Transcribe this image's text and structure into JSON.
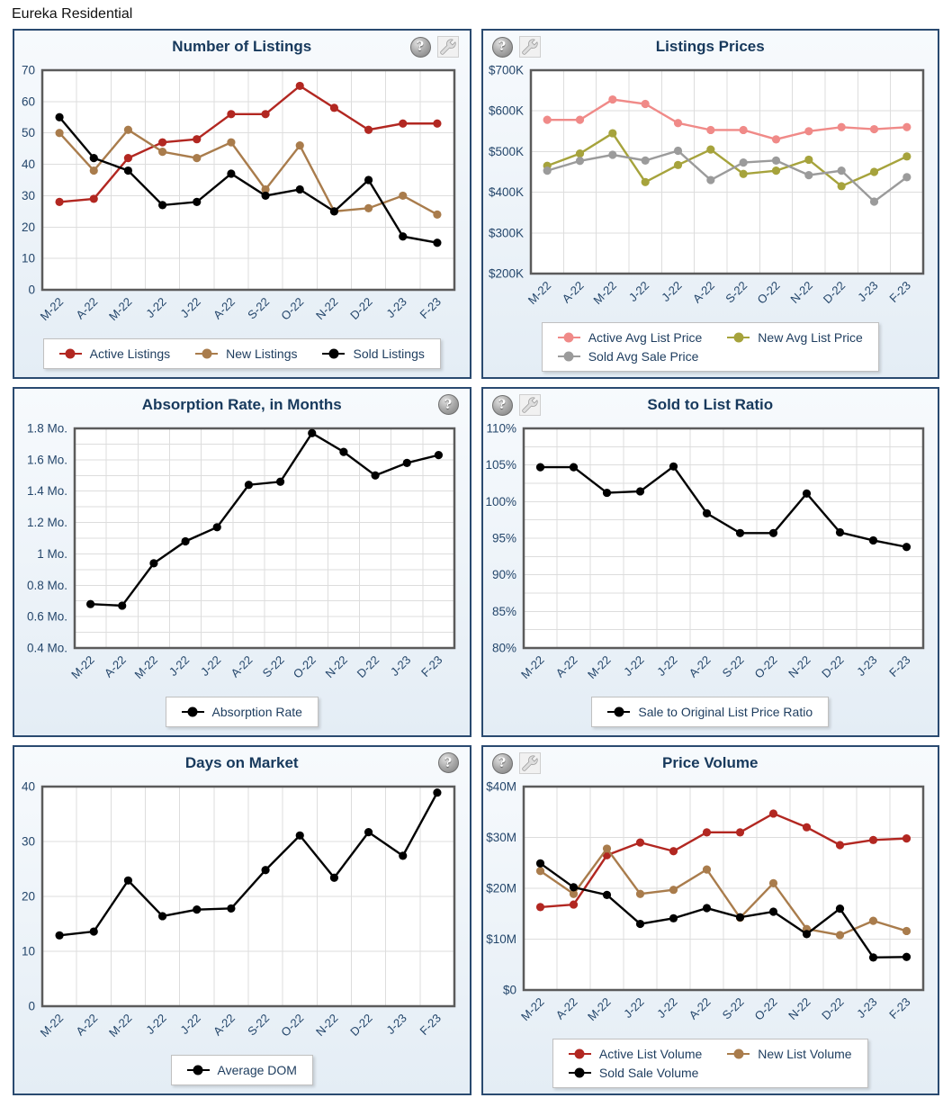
{
  "page_title": "Eureka Residential",
  "colors": {
    "panel_border": "#2a4a70",
    "title_text": "#17395c",
    "axis_text": "#24466b",
    "grid": "#dddddd",
    "plot_border": "#5b5b5b",
    "plot_bg": "#ffffff",
    "legend_border": "#c0c0c0",
    "legend_bg": "#ffffff",
    "legend_text": "#1d3c5e",
    "panel_bg_top": "#f7fafd",
    "panel_bg_bottom": "#e4edf5",
    "page_bg": "#ffffff",
    "series_red": "#b22721",
    "series_brown": "#a97c4c",
    "series_black": "#000000",
    "series_pink": "#f08a88",
    "series_olive": "#a6a33c",
    "series_gray": "#9b9b9b"
  },
  "icons": {
    "help_glyph": "?",
    "tools_label": "tools"
  },
  "panels": [
    {
      "icons": [
        "help",
        "tools"
      ],
      "icons_side": "right"
    },
    {
      "icons": [
        "help",
        "tools"
      ],
      "icons_side": "left"
    },
    {
      "icons": [
        "help"
      ],
      "icons_side": "right"
    },
    {
      "icons": [
        "help",
        "tools"
      ],
      "icons_side": "left"
    },
    {
      "icons": [
        "help"
      ],
      "icons_side": "right"
    },
    {
      "icons": [
        "help",
        "tools"
      ],
      "icons_side": "left"
    }
  ],
  "chart_data": [
    {
      "type": "line",
      "title": "Number of Listings",
      "categories": [
        "M-22",
        "A-22",
        "M-22",
        "J-22",
        "J-22",
        "A-22",
        "S-22",
        "O-22",
        "N-22",
        "D-22",
        "J-23",
        "F-23"
      ],
      "ylim": [
        0,
        70
      ],
      "y_grid_step": 10,
      "yticks": [
        [
          70,
          "70"
        ],
        [
          60,
          "60"
        ],
        [
          50,
          "50"
        ],
        [
          40,
          "40"
        ],
        [
          30,
          "30"
        ],
        [
          20,
          "20"
        ],
        [
          10,
          "10"
        ],
        [
          0,
          "0"
        ]
      ],
      "legend_position": "bottom",
      "legend_cols": 3,
      "series": [
        {
          "name": "Active Listings",
          "color": "#b22721",
          "values": [
            28,
            29,
            42,
            47,
            48,
            56,
            56,
            65,
            58,
            51,
            53,
            53
          ]
        },
        {
          "name": "New Listings",
          "color": "#a97c4c",
          "values": [
            50,
            38,
            51,
            44,
            42,
            47,
            32,
            46,
            25,
            26,
            30,
            24
          ]
        },
        {
          "name": "Sold Listings",
          "color": "#000000",
          "values": [
            55,
            42,
            38,
            27,
            28,
            37,
            30,
            32,
            25,
            35,
            17,
            15
          ]
        }
      ]
    },
    {
      "type": "line",
      "title": "Listings Prices",
      "categories": [
        "M-22",
        "A-22",
        "M-22",
        "J-22",
        "J-22",
        "A-22",
        "S-22",
        "O-22",
        "N-22",
        "D-22",
        "J-23",
        "F-23"
      ],
      "ylim": [
        200,
        700
      ],
      "y_grid_step": 100,
      "yticks": [
        [
          700,
          "$700K"
        ],
        [
          600,
          "$600K"
        ],
        [
          500,
          "$500K"
        ],
        [
          400,
          "$400K"
        ],
        [
          300,
          "$300K"
        ],
        [
          200,
          "$200K"
        ]
      ],
      "legend_position": "bottom",
      "legend_cols": 2,
      "series": [
        {
          "name": "Active Avg List Price",
          "color": "#f08a88",
          "values": [
            578,
            578,
            628,
            617,
            570,
            553,
            553,
            530,
            550,
            560,
            555,
            560
          ]
        },
        {
          "name": "New Avg List Price",
          "color": "#a6a33c",
          "values": [
            465,
            495,
            545,
            425,
            467,
            505,
            445,
            453,
            480,
            415,
            450,
            488
          ]
        },
        {
          "name": "Sold Avg Sale Price",
          "color": "#9b9b9b",
          "values": [
            453,
            477,
            492,
            478,
            502,
            430,
            473,
            478,
            442,
            453,
            377,
            437
          ]
        }
      ]
    },
    {
      "type": "line",
      "title": "Absorption Rate, in Months",
      "categories": [
        "M-22",
        "A-22",
        "M-22",
        "J-22",
        "J-22",
        "A-22",
        "S-22",
        "O-22",
        "N-22",
        "D-22",
        "J-23",
        "F-23"
      ],
      "ylim": [
        0.4,
        1.8
      ],
      "y_grid_step": 0.1,
      "yticks": [
        [
          1.8,
          "1.8 Mo."
        ],
        [
          1.6,
          "1.6 Mo."
        ],
        [
          1.4,
          "1.4 Mo."
        ],
        [
          1.2,
          "1.2 Mo."
        ],
        [
          1,
          "1 Mo."
        ],
        [
          0.8,
          "0.8 Mo."
        ],
        [
          0.6,
          "0.6 Mo."
        ],
        [
          0.4,
          "0.4 Mo."
        ]
      ],
      "legend_position": "bottom",
      "legend_cols": 1,
      "series": [
        {
          "name": "Absorption Rate",
          "color": "#000000",
          "values": [
            0.68,
            0.67,
            0.94,
            1.08,
            1.17,
            1.44,
            1.46,
            1.77,
            1.65,
            1.5,
            1.58,
            1.63
          ]
        }
      ]
    },
    {
      "type": "line",
      "title": "Sold to List Ratio",
      "categories": [
        "M-22",
        "A-22",
        "M-22",
        "J-22",
        "J-22",
        "A-22",
        "S-22",
        "O-22",
        "N-22",
        "D-22",
        "J-23",
        "F-23"
      ],
      "ylim": [
        80,
        110
      ],
      "y_grid_step": 2.5,
      "yticks": [
        [
          110,
          "110%"
        ],
        [
          105,
          "105%"
        ],
        [
          100,
          "100%"
        ],
        [
          95,
          "95%"
        ],
        [
          90,
          "90%"
        ],
        [
          85,
          "85%"
        ],
        [
          80,
          "80%"
        ]
      ],
      "legend_position": "bottom",
      "legend_cols": 1,
      "series": [
        {
          "name": "Sale to Original List Price Ratio",
          "color": "#000000",
          "values": [
            104.7,
            104.7,
            101.2,
            101.4,
            104.8,
            98.4,
            95.7,
            95.7,
            101.1,
            95.8,
            94.7,
            93.8
          ]
        }
      ]
    },
    {
      "type": "line",
      "title": "Days on Market",
      "categories": [
        "M-22",
        "A-22",
        "M-22",
        "J-22",
        "J-22",
        "A-22",
        "S-22",
        "O-22",
        "N-22",
        "D-22",
        "J-23",
        "F-23"
      ],
      "ylim": [
        0,
        40
      ],
      "y_grid_step": 10,
      "yticks": [
        [
          40,
          "40"
        ],
        [
          30,
          "30"
        ],
        [
          20,
          "20"
        ],
        [
          10,
          "10"
        ],
        [
          0,
          "0"
        ]
      ],
      "legend_position": "bottom",
      "legend_cols": 1,
      "series": [
        {
          "name": "Average DOM",
          "color": "#000000",
          "values": [
            12.9,
            13.6,
            22.9,
            16.4,
            17.6,
            17.8,
            24.8,
            31.1,
            23.4,
            31.7,
            27.4,
            38.9
          ]
        }
      ]
    },
    {
      "type": "line",
      "title": "Price Volume",
      "categories": [
        "M-22",
        "A-22",
        "M-22",
        "J-22",
        "J-22",
        "A-22",
        "S-22",
        "O-22",
        "N-22",
        "D-22",
        "J-23",
        "F-23"
      ],
      "ylim": [
        0,
        40
      ],
      "y_grid_step": 10,
      "yticks": [
        [
          40,
          "$40M"
        ],
        [
          30,
          "$30M"
        ],
        [
          20,
          "$20M"
        ],
        [
          10,
          "$10M"
        ],
        [
          0,
          "$0"
        ]
      ],
      "legend_position": "bottom",
      "legend_cols": 2,
      "series": [
        {
          "name": "Active List Volume",
          "color": "#b22721",
          "values": [
            16.3,
            16.8,
            26.5,
            29.0,
            27.3,
            31.0,
            31.0,
            34.7,
            32.0,
            28.5,
            29.5,
            29.8
          ]
        },
        {
          "name": "New List Volume",
          "color": "#a97c4c",
          "values": [
            23.4,
            18.9,
            27.8,
            18.9,
            19.7,
            23.7,
            14.2,
            21.0,
            12.0,
            10.8,
            13.6,
            11.6
          ]
        },
        {
          "name": "Sold Sale Volume",
          "color": "#000000",
          "values": [
            24.9,
            20.2,
            18.7,
            13.0,
            14.1,
            16.1,
            14.3,
            15.4,
            11.0,
            16.0,
            6.4,
            6.5
          ]
        }
      ]
    }
  ]
}
